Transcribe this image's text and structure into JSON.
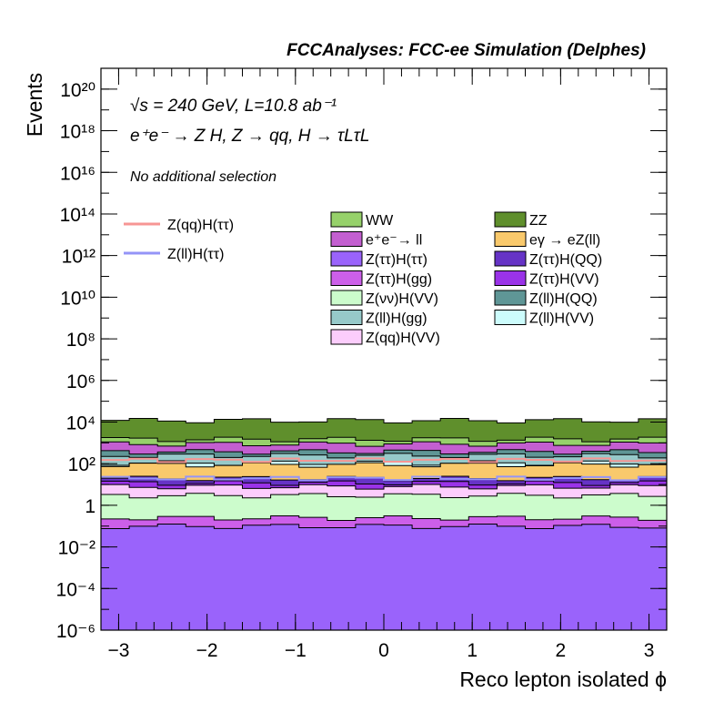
{
  "header": {
    "title": "FCCAnalyses: FCC-ee Simulation (Delphes)",
    "energy_line": "√s = 240 GeV, L=10.8 ab⁻¹",
    "process_line": "e⁺e⁻ → Z H, Z → qq, H → τLτL",
    "selection_line": "No additional selection"
  },
  "legend_signal": [
    {
      "label": "Z(qq)H(ττ)",
      "color": "#f79694"
    },
    {
      "label": "Z(ll)H(ττ)",
      "color": "#9494f7"
    }
  ],
  "legend_backgrounds": [
    {
      "label": "WW",
      "color": "#96d16a"
    },
    {
      "label": "ZZ",
      "color": "#5f8f2c"
    },
    {
      "label": "e⁺e⁻→ ll",
      "color": "#c35fd0"
    },
    {
      "label": "eγ → eZ(ll)",
      "color": "#f9c96c"
    },
    {
      "label": "Z(ττ)H(ττ)",
      "color": "#9a63fb"
    },
    {
      "label": "Z(ττ)H(QQ)",
      "color": "#6633c6"
    },
    {
      "label": "Z(ττ)H(gg)",
      "color": "#cc5fe9"
    },
    {
      "label": "Z(ττ)H(VV)",
      "color": "#9a33e8"
    },
    {
      "label": "Z(νν)H(VV)",
      "color": "#ccfccc"
    },
    {
      "label": "Z(ll)H(QQ)",
      "color": "#5f9696"
    },
    {
      "label": "Z(ll)H(gg)",
      "color": "#96c9c9"
    },
    {
      "label": "Z(ll)H(VV)",
      "color": "#ccfcfc"
    },
    {
      "label": "Z(qq)H(VV)",
      "color": "#fccdfc"
    }
  ],
  "chart_data": {
    "type": "area",
    "xlabel": "Reco lepton isolated ϕ",
    "ylabel": "Events",
    "xlim": [
      -3.2,
      3.2
    ],
    "ylim": [
      1e-06,
      1e+21
    ],
    "y_scale": "log",
    "x_ticks": [
      "−3",
      "−2",
      "−1",
      "0",
      "1",
      "2",
      "3"
    ],
    "y_ticks": [
      "10⁻⁶",
      "10⁻⁴",
      "10⁻²",
      "1",
      "10²",
      "10⁴",
      "10⁶",
      "10⁸",
      "10¹⁰",
      "10¹²",
      "10¹⁴",
      "10¹⁶",
      "10¹⁸",
      "10²⁰"
    ],
    "n_bins": 20,
    "stack_tops_approx": [
      {
        "name": "Z(ττ)H(ττ)",
        "y": 0.1
      },
      {
        "name": "Z(ττ)H(gg)",
        "y": 0.25
      },
      {
        "name": "Z(νν)H(VV)",
        "y": 3
      },
      {
        "name": "Z(qq)H(VV)",
        "y": 8
      },
      {
        "name": "Z(ττ)H(VV)",
        "y": 12
      },
      {
        "name": "Z(ττ)H(QQ)",
        "y": 20
      },
      {
        "name": "eγ → eZ(ll)",
        "y": 90
      },
      {
        "name": "Z(ll)H(VV)",
        "y": 110
      },
      {
        "name": "Z(ll)H(gg)",
        "y": 250
      },
      {
        "name": "Z(ll)H(QQ)",
        "y": 380
      },
      {
        "name": "e⁺e⁻→ ll",
        "y": 900
      },
      {
        "name": "WW",
        "y": 1500
      },
      {
        "name": "ZZ",
        "y": 12000
      }
    ],
    "signal_approx": [
      {
        "name": "Z(qq)H(ττ)",
        "y": 150
      },
      {
        "name": "Z(ll)H(ττ)",
        "y": 20
      }
    ]
  }
}
